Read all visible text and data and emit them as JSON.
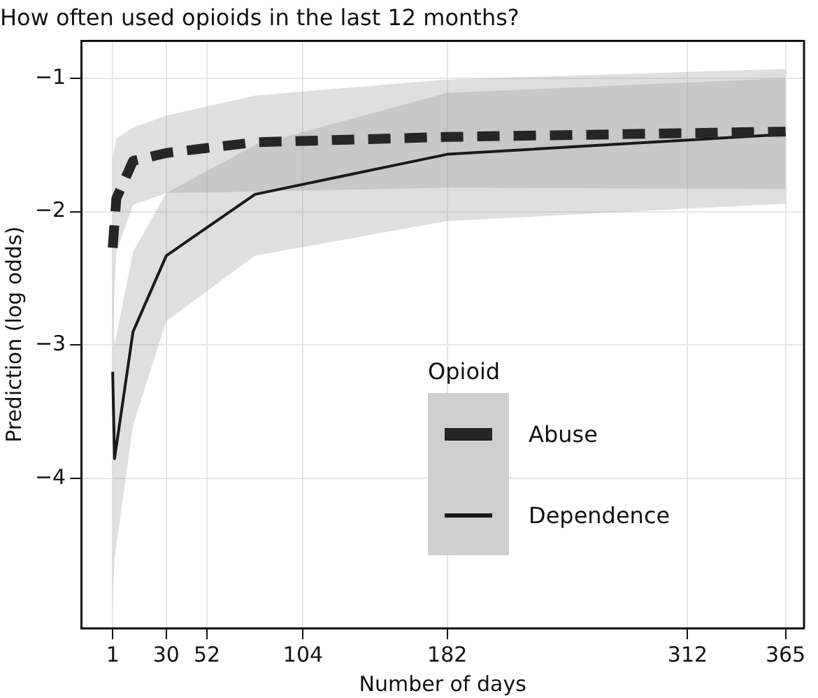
{
  "chart_data": {
    "type": "line",
    "title": "How often used opioids in the last 12 months?",
    "xlabel": "Number of days",
    "ylabel": "Prediction (log odds)",
    "legend_title": "Opioid",
    "legend": "right",
    "grid": true,
    "marker": "none",
    "xlim": [
      -16,
      375
    ],
    "xticks": [
      1,
      30,
      52,
      104,
      182,
      312,
      365
    ],
    "ylim": [
      -5.12,
      -0.72
    ],
    "yticks": [
      -4,
      -3,
      -2,
      -1
    ],
    "series": [
      {
        "name": "Abuse",
        "color": "#262626",
        "line_style": "dashed",
        "x": [
          1,
          3,
          12,
          30,
          78,
          182,
          365
        ],
        "values": [
          -2.27,
          -1.9,
          -1.62,
          -1.56,
          -1.48,
          -1.44,
          -1.4
        ],
        "lower": [
          -2.9,
          -2.3,
          -1.95,
          -1.86,
          -1.85,
          -1.82,
          -1.83
        ],
        "upper": [
          -1.6,
          -1.45,
          -1.37,
          -1.28,
          -1.13,
          -1.01,
          -0.93
        ]
      },
      {
        "name": "Dependence",
        "color": "#1a1a1a",
        "line_style": "solid",
        "x": [
          1,
          2,
          12,
          30,
          78,
          182,
          365
        ],
        "values": [
          -3.2,
          -3.85,
          -2.9,
          -2.33,
          -1.87,
          -1.57,
          -1.42
        ],
        "lower": [
          -4.95,
          -4.6,
          -3.6,
          -2.82,
          -2.33,
          -2.07,
          -1.94
        ],
        "upper": [
          -2.5,
          -3.0,
          -2.3,
          -1.86,
          -1.5,
          -1.11,
          -1.0
        ]
      }
    ]
  }
}
